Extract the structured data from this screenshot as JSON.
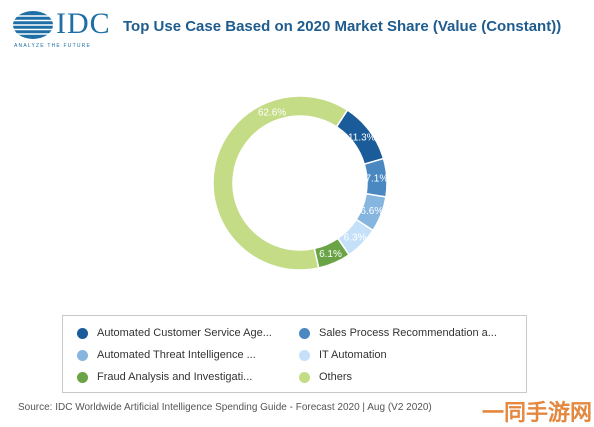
{
  "header": {
    "logo_text": "IDC",
    "logo_tagline": "ANALYZE THE FUTURE",
    "title": "Top Use Case Based on 2020 Market Share (Value (Constant))"
  },
  "colors": {
    "brand": "#1d6fa5",
    "title": "#1f5c8e"
  },
  "chart_data": {
    "type": "pie",
    "donut": true,
    "title": "Top Use Case Based on 2020 Market Share (Value (Constant))",
    "series": [
      {
        "name": "Automated Customer Service Age...",
        "value": 11.3,
        "label": "11.3%",
        "color": "#1a5b99"
      },
      {
        "name": "Sales Process Recommendation a...",
        "value": 7.1,
        "label": "7.1%",
        "color": "#4a88c2"
      },
      {
        "name": "Automated Threat Intelligence ...",
        "value": 6.6,
        "label": "6.6%",
        "color": "#86b5e0"
      },
      {
        "name": "IT Automation",
        "value": 6.3,
        "label": "6.3%",
        "color": "#c5e1fa"
      },
      {
        "name": "Fraud Analysis and Investigati...",
        "value": 6.1,
        "label": "6.1%",
        "color": "#6aa446"
      },
      {
        "name": "Others",
        "value": 62.6,
        "label": "62.6%",
        "color": "#c4dc86"
      }
    ],
    "legend_position": "bottom"
  },
  "footer": {
    "source": "Source: IDC Worldwide Artificial Intelligence Spending Guide - Forecast 2020 | Aug (V2 2020)",
    "watermark": "一同手游网"
  }
}
